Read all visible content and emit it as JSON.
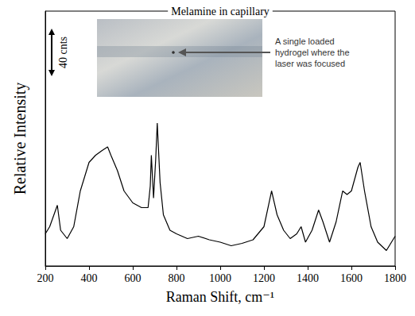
{
  "chart_data": {
    "type": "line",
    "title": "Melamine in capillary",
    "x_label": "Raman Shift, cm⁻¹",
    "y_label": "Relative Intensity",
    "x": [
      200,
      220,
      255,
      270,
      300,
      330,
      360,
      400,
      430,
      460,
      485,
      500,
      530,
      560,
      600,
      640,
      670,
      680,
      685,
      695,
      705,
      712,
      725,
      740,
      770,
      800,
      850,
      900,
      950,
      1000,
      1050,
      1100,
      1150,
      1200,
      1235,
      1260,
      1290,
      1320,
      1350,
      1370,
      1390,
      1420,
      1450,
      1470,
      1500,
      1530,
      1560,
      1580,
      1600,
      1630,
      1640,
      1660,
      1690,
      1720,
      1760,
      1800
    ],
    "values": [
      27,
      33,
      51,
      30,
      23,
      33,
      63,
      87,
      93,
      97,
      100,
      93,
      80,
      63,
      53,
      49,
      49,
      67,
      93,
      57,
      90,
      120,
      70,
      43,
      30,
      27,
      23,
      25,
      22,
      20,
      17,
      19,
      22,
      33,
      63,
      43,
      30,
      23,
      27,
      33,
      20,
      30,
      47,
      37,
      20,
      37,
      63,
      60,
      63,
      83,
      87,
      63,
      33,
      20,
      13,
      25
    ],
    "xlim": [
      200,
      1800
    ],
    "xticks": [
      200,
      400,
      600,
      800,
      1000,
      1200,
      1400,
      1600,
      1800
    ],
    "ylim": [
      0,
      214
    ],
    "tick_labels": "x",
    "grid": false,
    "color": "#000000",
    "line_style": "solid",
    "scale_bar": {
      "value": 40,
      "label": "40 cnts"
    },
    "annotation": "A single loaded hydrogel where the laser was focused"
  }
}
